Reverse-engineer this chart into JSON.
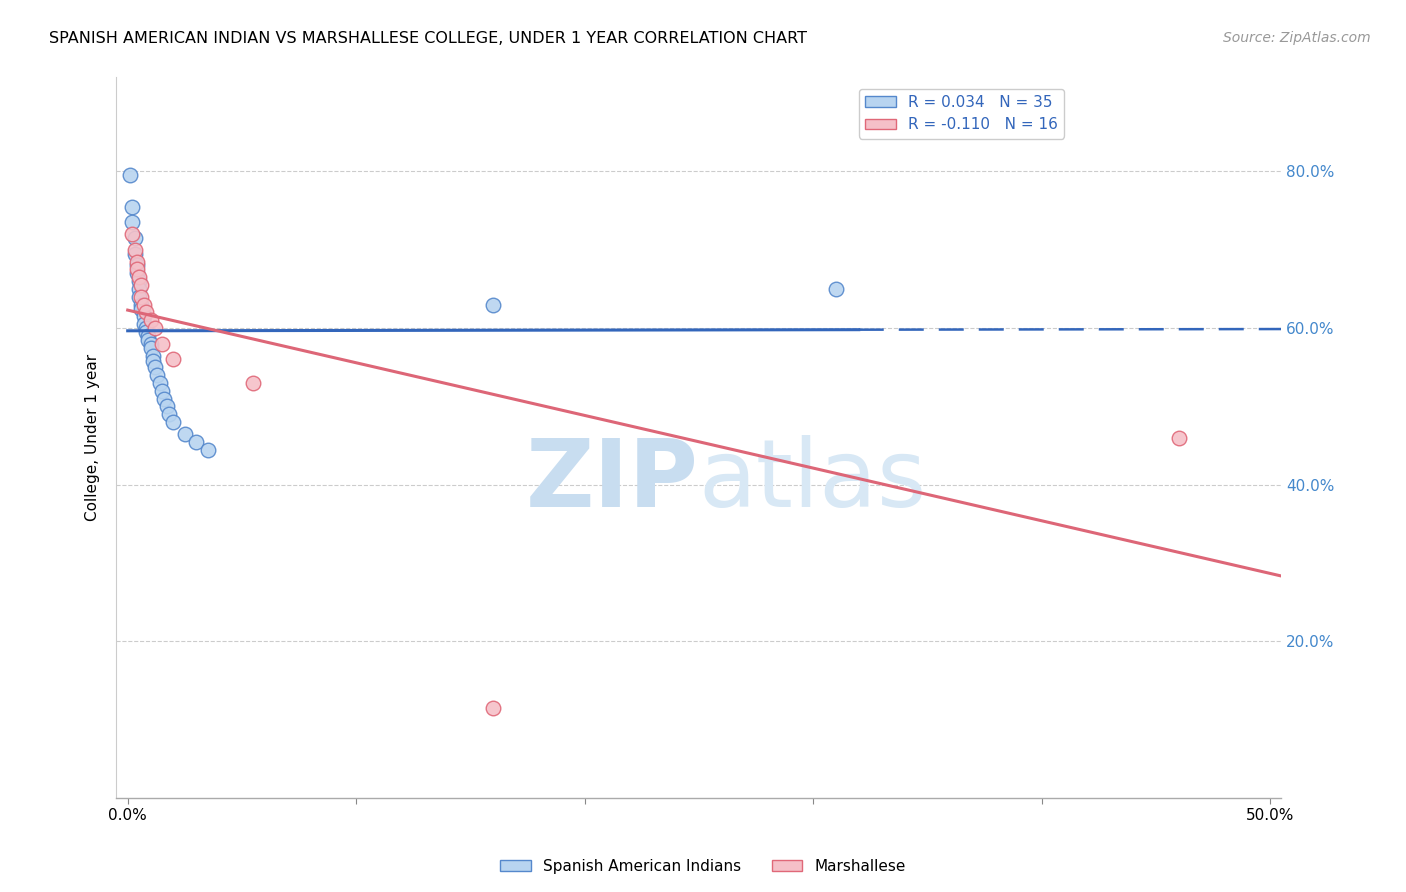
{
  "title": "SPANISH AMERICAN INDIAN VS MARSHALLESE COLLEGE, UNDER 1 YEAR CORRELATION CHART",
  "source": "Source: ZipAtlas.com",
  "xlabel_vals": [
    0.0,
    0.5
  ],
  "xlabel_labels": [
    "0.0%",
    "50.0%"
  ],
  "xlabel_tick_positions": [
    0.0,
    0.1,
    0.2,
    0.3,
    0.4,
    0.5
  ],
  "ylabel_vals": [
    0.2,
    0.4,
    0.6,
    0.8
  ],
  "xlim": [
    -0.005,
    0.505
  ],
  "ylim": [
    0.0,
    0.92
  ],
  "blue_R": 0.034,
  "blue_N": 35,
  "pink_R": -0.11,
  "pink_N": 16,
  "blue_points": [
    [
      0.001,
      0.795
    ],
    [
      0.002,
      0.755
    ],
    [
      0.002,
      0.735
    ],
    [
      0.003,
      0.715
    ],
    [
      0.003,
      0.695
    ],
    [
      0.004,
      0.68
    ],
    [
      0.004,
      0.67
    ],
    [
      0.005,
      0.66
    ],
    [
      0.005,
      0.65
    ],
    [
      0.005,
      0.64
    ],
    [
      0.006,
      0.63
    ],
    [
      0.006,
      0.625
    ],
    [
      0.007,
      0.615
    ],
    [
      0.007,
      0.605
    ],
    [
      0.008,
      0.6
    ],
    [
      0.008,
      0.595
    ],
    [
      0.009,
      0.59
    ],
    [
      0.009,
      0.585
    ],
    [
      0.01,
      0.58
    ],
    [
      0.01,
      0.575
    ],
    [
      0.011,
      0.565
    ],
    [
      0.011,
      0.558
    ],
    [
      0.012,
      0.55
    ],
    [
      0.013,
      0.54
    ],
    [
      0.014,
      0.53
    ],
    [
      0.015,
      0.52
    ],
    [
      0.016,
      0.51
    ],
    [
      0.017,
      0.5
    ],
    [
      0.018,
      0.49
    ],
    [
      0.02,
      0.48
    ],
    [
      0.025,
      0.465
    ],
    [
      0.03,
      0.455
    ],
    [
      0.035,
      0.445
    ],
    [
      0.16,
      0.63
    ],
    [
      0.31,
      0.65
    ]
  ],
  "pink_points": [
    [
      0.002,
      0.72
    ],
    [
      0.003,
      0.7
    ],
    [
      0.004,
      0.685
    ],
    [
      0.004,
      0.675
    ],
    [
      0.005,
      0.665
    ],
    [
      0.006,
      0.655
    ],
    [
      0.006,
      0.64
    ],
    [
      0.007,
      0.63
    ],
    [
      0.008,
      0.62
    ],
    [
      0.01,
      0.61
    ],
    [
      0.012,
      0.6
    ],
    [
      0.015,
      0.58
    ],
    [
      0.02,
      0.56
    ],
    [
      0.055,
      0.53
    ],
    [
      0.16,
      0.115
    ],
    [
      0.46,
      0.46
    ]
  ],
  "blue_color": "#b8d4f0",
  "blue_edge_color": "#5588cc",
  "blue_line_color": "#3366bb",
  "pink_color": "#f5c0c8",
  "pink_edge_color": "#e06878",
  "pink_line_color": "#dd6677",
  "right_axis_color": "#4488cc",
  "watermark_color": "#ddeeff",
  "background_color": "#ffffff",
  "grid_color": "#cccccc"
}
